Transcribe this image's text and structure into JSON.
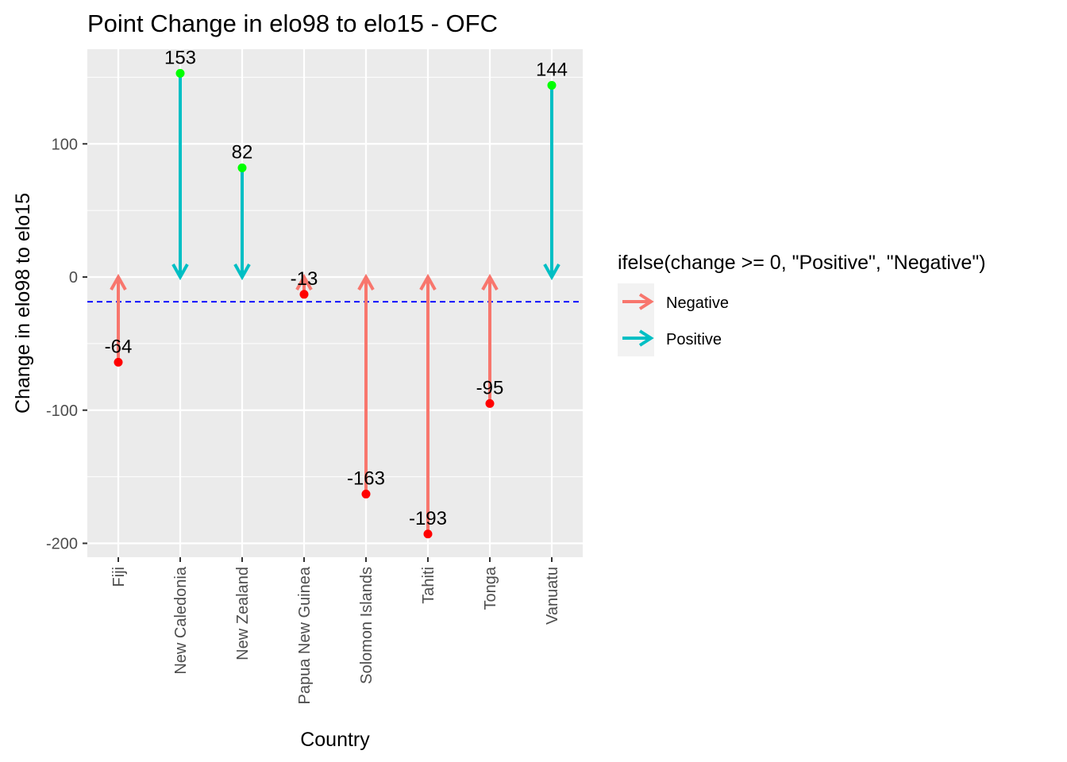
{
  "chart_data": {
    "type": "segment",
    "title": "Point Change in elo98 to elo15 - OFC",
    "xlabel": "Country",
    "ylabel": "Change in elo98 to elo15",
    "categories": [
      "Fiji",
      "New Caledonia",
      "New Zealand",
      "Papua New Guinea",
      "Solomon Islands",
      "Tahiti",
      "Tonga",
      "Vanuatu"
    ],
    "values": [
      -64,
      153,
      82,
      -13,
      -163,
      -193,
      -95,
      144
    ],
    "point_labels": [
      "-64",
      "153",
      "82",
      "-13",
      "-163",
      "-193",
      "-95",
      "144"
    ],
    "reference_line": {
      "y": -18.6,
      "style": "dashed",
      "color": "#0000ff"
    },
    "y_ticks": [
      100,
      0,
      -100,
      -200
    ],
    "y_tick_labels": [
      "100",
      "0",
      "-100",
      "-200"
    ],
    "ylim": [
      -210,
      167
    ],
    "grid": true,
    "legend": {
      "title": "ifelse(change >= 0, \"Positive\", \"Negative\")",
      "position": "right",
      "items": [
        {
          "label": "Negative",
          "color": "#f8766d"
        },
        {
          "label": "Positive",
          "color": "#00bfc4"
        }
      ]
    },
    "point_colors": {
      "positive": "#00ff00",
      "negative": "#ff0000"
    }
  }
}
